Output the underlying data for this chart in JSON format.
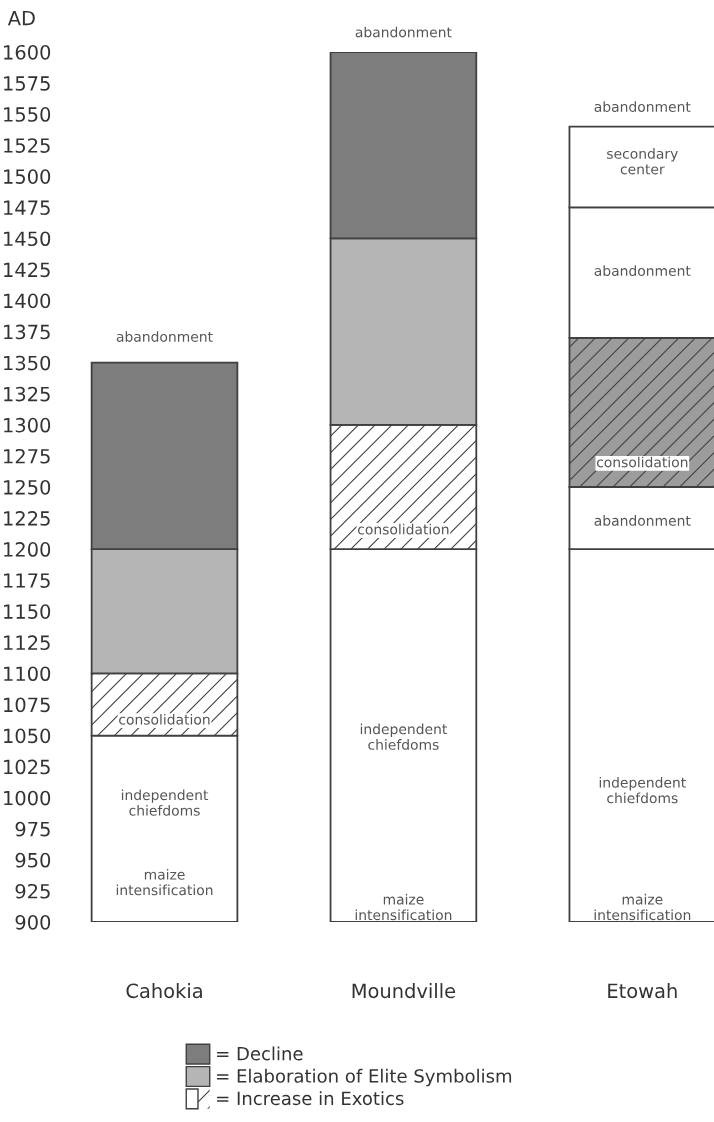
{
  "chart_data": {
    "type": "bar",
    "ylabel": "AD",
    "categories": [
      "Cahokia",
      "Moundville",
      "Etowah"
    ],
    "series": [
      {
        "color": "#ffffff",
        "values": [
          150,
          300,
          300
        ],
        "base": [
          900,
          900,
          900
        ]
      },
      {
        "name": "= Increase in Exotics",
        "color": "#ffffff",
        "colors": [
          "#ffffff",
          "#ffffff",
          "#9c9c9c"
        ],
        "values": [
          50,
          100,
          120
        ],
        "base": [
          1050,
          1200,
          1250
        ]
      },
      {
        "name": "= Elaboration of Elite Symbolism",
        "color": "#b5b5b5",
        "values": [
          100,
          150,
          null
        ],
        "base": [
          1100,
          1300,
          null
        ]
      },
      {
        "name": "= Decline",
        "color": "#7d7d7d",
        "values": [
          150,
          150,
          null
        ],
        "base": [
          1200,
          1450,
          null
        ]
      },
      {
        "color": "#ffffff",
        "values": [
          null,
          null,
          50
        ],
        "base": [
          null,
          null,
          1200
        ]
      },
      {
        "color": "#ffffff",
        "values": [
          null,
          null,
          105
        ],
        "base": [
          null,
          null,
          1370
        ]
      },
      {
        "color": "#ffffff",
        "values": [
          null,
          null,
          65
        ],
        "base": [
          null,
          null,
          1475
        ]
      }
    ],
    "ylim": [
      900,
      1600
    ],
    "yticks": [
      900,
      925,
      950,
      975,
      1000,
      1025,
      1050,
      1075,
      1100,
      1125,
      1150,
      1175,
      1200,
      1225,
      1250,
      1275,
      1300,
      1325,
      1350,
      1375,
      1400,
      1425,
      1450,
      1475,
      1500,
      1525,
      1550,
      1575,
      1600
    ],
    "grid": false,
    "legend": "bottom",
    "annotations": [
      "abandonment",
      "consolidation",
      "independent\nchiefdoms",
      "maize\nintensification",
      "abandonment",
      "consolidation",
      "independent\nchiefdoms",
      "maize\nintensification",
      "abandonment",
      "secondary\ncenter",
      "abandonment",
      "consolidation",
      "abandonment",
      "independent\nchiefdoms",
      "maize\nintensification"
    ]
  }
}
